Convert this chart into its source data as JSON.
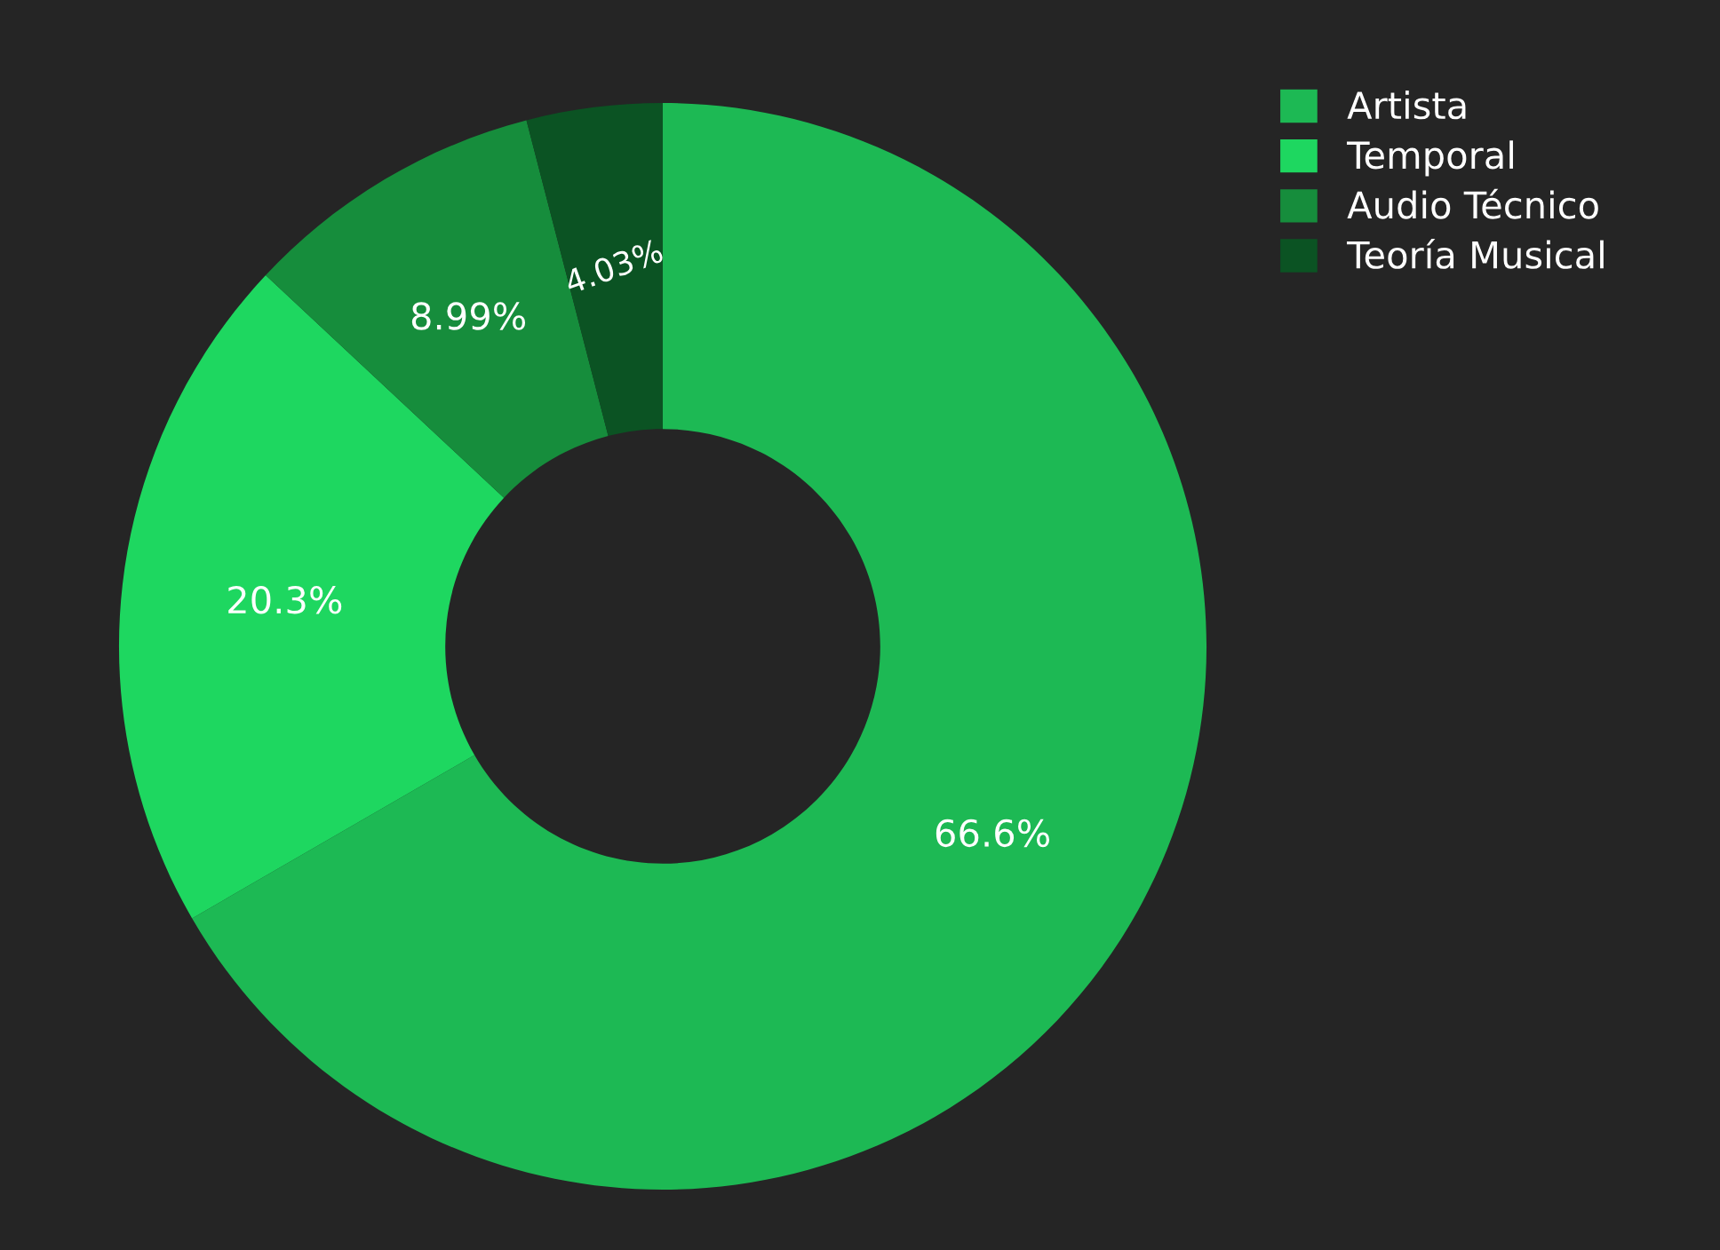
{
  "chart_data": {
    "type": "donut",
    "categories": [
      "Artista",
      "Temporal",
      "Audio Técnico",
      "Teoría Musical"
    ],
    "values": [
      66.6,
      20.3,
      8.99,
      4.03
    ],
    "value_labels": [
      "66.6%",
      "20.3%",
      "8.99%",
      "4.03%"
    ],
    "colors": [
      "#1db954",
      "#1ed760",
      "#168d3c",
      "#0b5323"
    ],
    "legend": "top right"
  }
}
